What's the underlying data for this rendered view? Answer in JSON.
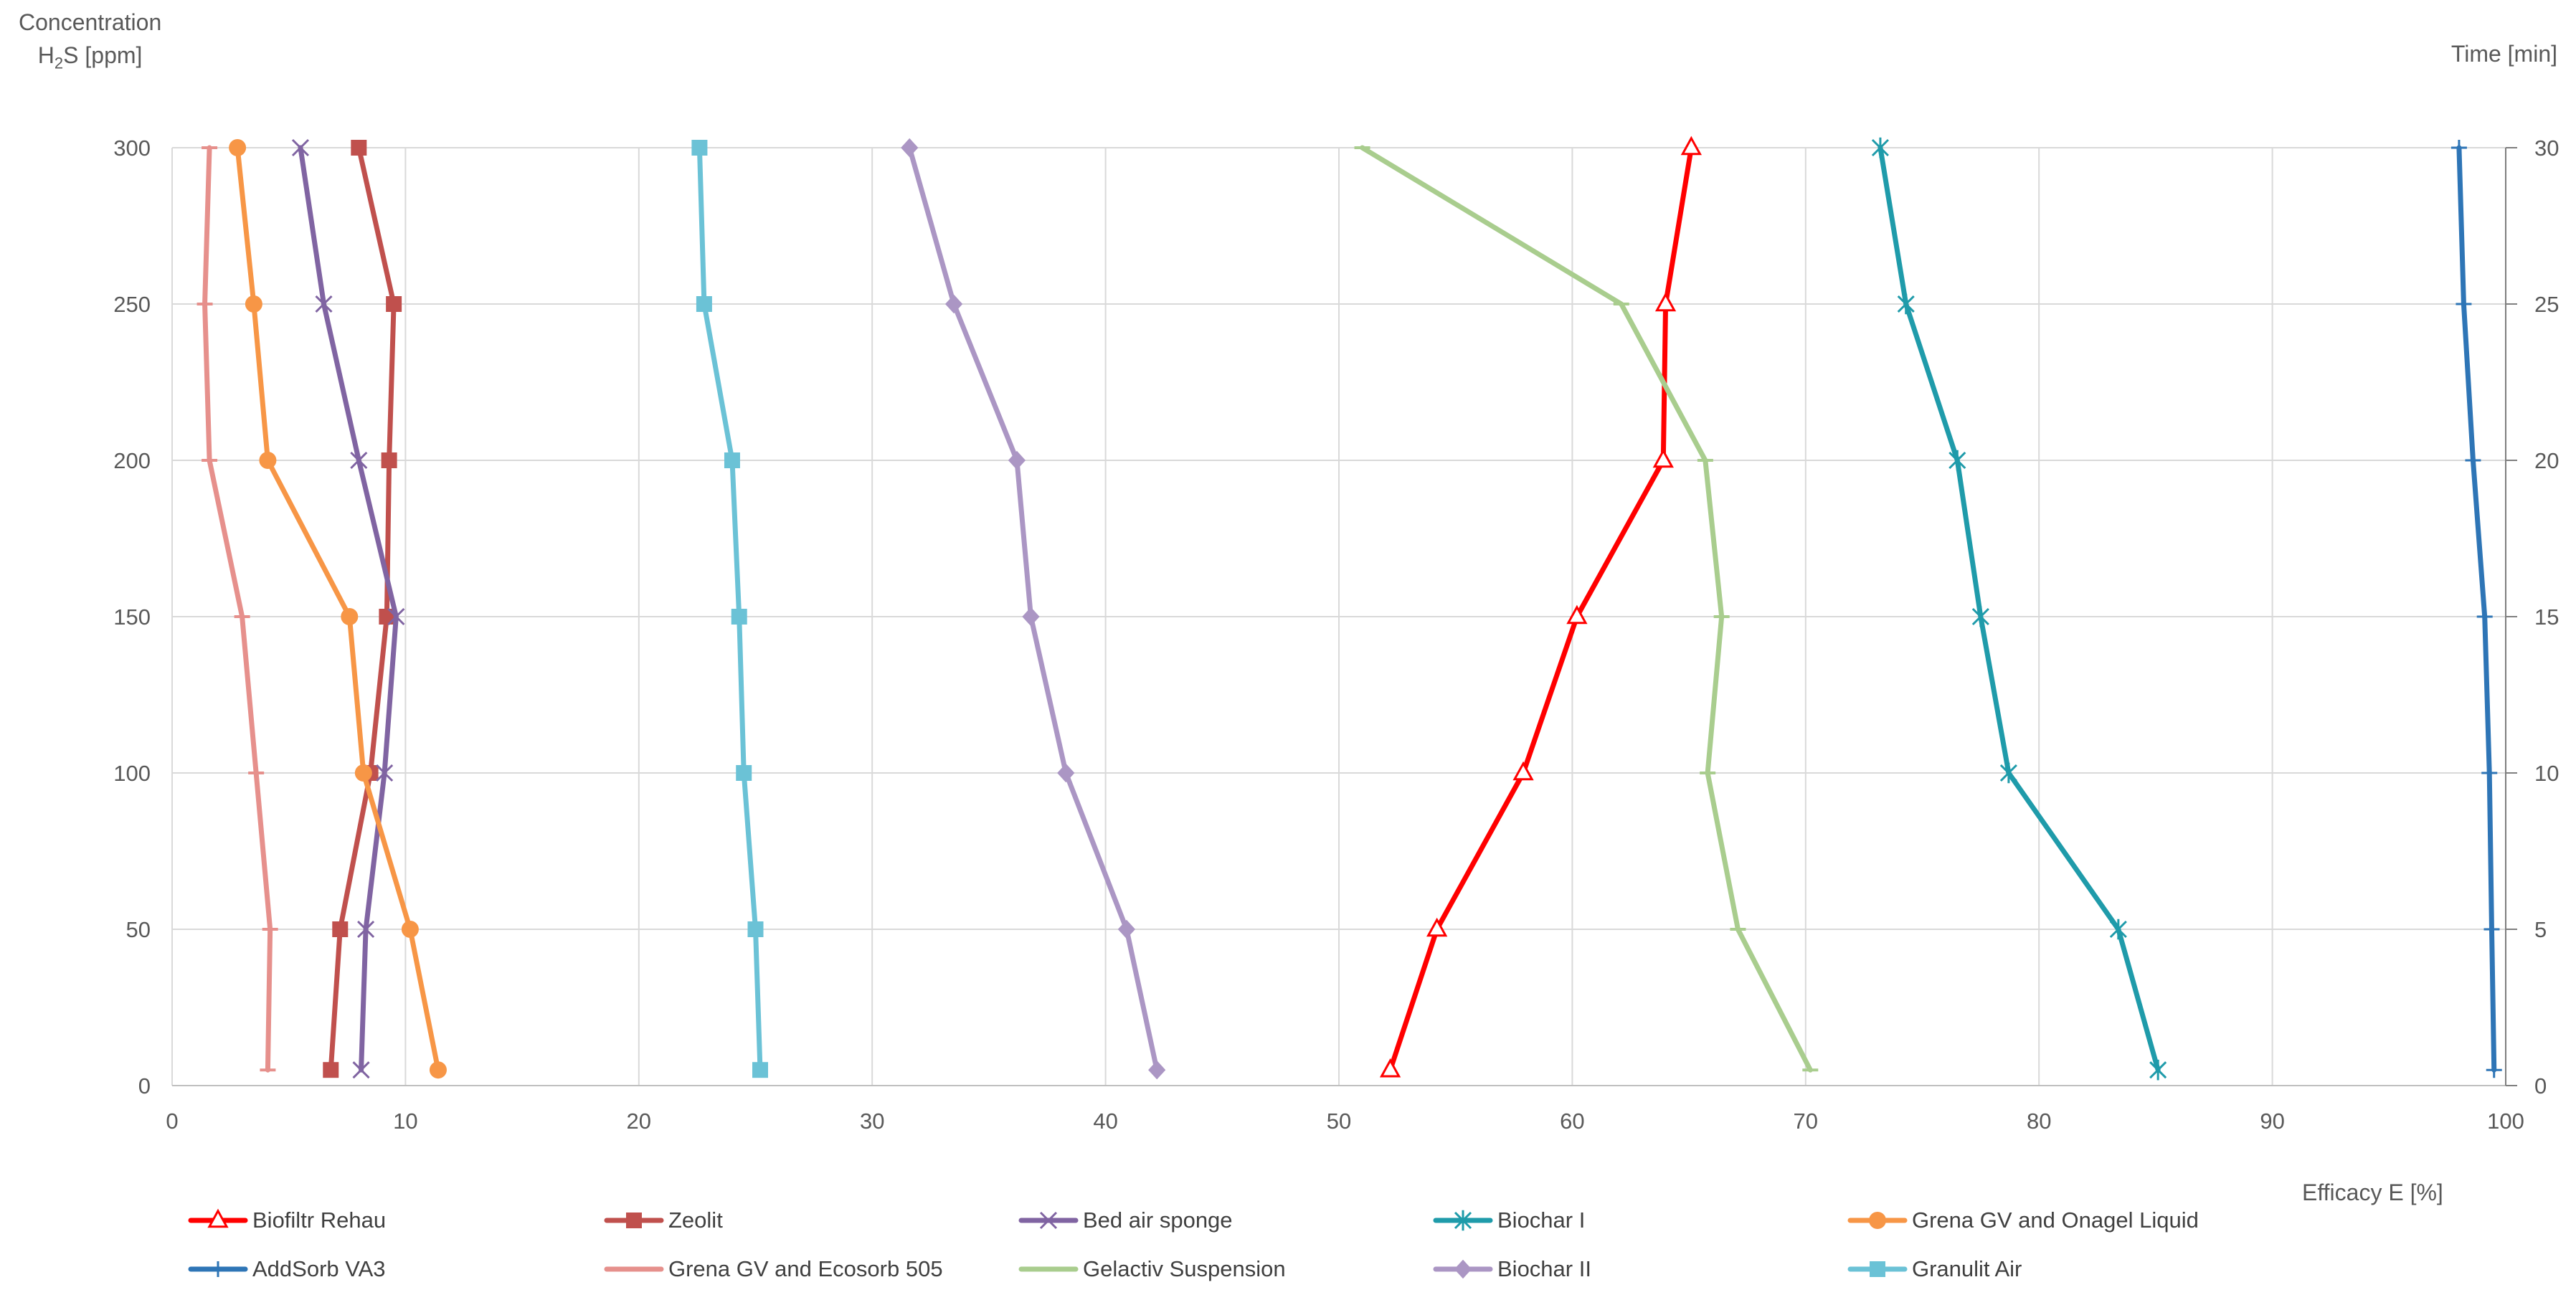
{
  "chart_data": {
    "type": "line",
    "y_title_line1": "Concentration",
    "y_title_prefix": "H",
    "y_title_sub": "2",
    "y_title_suffix": "S [ppm]",
    "right_axis_label": "Time [min]",
    "xlabel": "Efficacy E [%]",
    "xlim": [
      0,
      100
    ],
    "ylim": [
      0,
      300
    ],
    "y2lim": [
      0,
      30
    ],
    "x_ticks": [
      "0",
      "10",
      "20",
      "30",
      "40",
      "50",
      "60",
      "70",
      "80",
      "90",
      "100"
    ],
    "y_ticks": [
      "0",
      "50",
      "100",
      "150",
      "200",
      "250",
      "300"
    ],
    "y2_ticks": [
      "0",
      "5",
      "10",
      "15",
      "20",
      "25",
      "30"
    ],
    "grid": true,
    "legend_position": "bottom",
    "series": [
      {
        "name": "Biofiltr Rehau",
        "color": "#FF0000",
        "marker": "triangle-open",
        "x": [
          52.2,
          54.2,
          57.9,
          60.2,
          63.9,
          64.0,
          65.1
        ],
        "y": [
          5,
          50,
          100,
          150,
          200,
          250,
          300
        ]
      },
      {
        "name": "Zeolit",
        "color": "#C0504D",
        "marker": "square",
        "x": [
          6.8,
          7.2,
          8.5,
          9.2,
          9.3,
          9.5,
          8.0
        ],
        "y": [
          5,
          50,
          100,
          150,
          200,
          250,
          300
        ]
      },
      {
        "name": "Bed air sponge",
        "color": "#8064A2",
        "marker": "x",
        "x": [
          8.1,
          8.3,
          9.1,
          9.6,
          8.0,
          6.5,
          5.5
        ],
        "y": [
          5,
          50,
          100,
          150,
          200,
          250,
          300
        ]
      },
      {
        "name": "Biochar I",
        "color": "#1F9BAA",
        "marker": "asterisk",
        "x": [
          85.1,
          83.4,
          78.7,
          77.5,
          76.5,
          74.3,
          73.2
        ],
        "y": [
          5,
          50,
          100,
          150,
          200,
          250,
          300
        ]
      },
      {
        "name": "Grena GV and Onagel Liquid",
        "color": "#F79646",
        "marker": "circle",
        "x": [
          11.4,
          10.2,
          8.2,
          7.6,
          4.1,
          3.5,
          2.8
        ],
        "y": [
          5,
          50,
          100,
          150,
          200,
          250,
          300
        ]
      },
      {
        "name": "AddSorb VA3",
        "color": "#2E75B6",
        "marker": "plus",
        "x": [
          99.5,
          99.4,
          99.3,
          99.1,
          98.6,
          98.2,
          98.0
        ],
        "y": [
          5,
          50,
          100,
          150,
          200,
          250,
          300
        ]
      },
      {
        "name": "Grena GV and Ecosorb 505",
        "color": "#E6908C",
        "marker": "dash",
        "x": [
          4.1,
          4.2,
          3.6,
          3.0,
          1.6,
          1.4,
          1.6
        ],
        "y": [
          5,
          50,
          100,
          150,
          200,
          250,
          300
        ]
      },
      {
        "name": "Gelactiv Suspension",
        "color": "#A9CD8E",
        "marker": "dash",
        "x": [
          70.2,
          67.1,
          65.8,
          66.4,
          65.7,
          62.1,
          51.0
        ],
        "y": [
          5,
          50,
          100,
          150,
          200,
          250,
          300
        ]
      },
      {
        "name": "Biochar II",
        "color": "#AB96C4",
        "marker": "diamond",
        "x": [
          42.2,
          40.9,
          38.3,
          36.8,
          36.2,
          33.5,
          31.6
        ],
        "y": [
          5,
          50,
          100,
          150,
          200,
          250,
          300
        ]
      },
      {
        "name": "Granulit Air",
        "color": "#6BC2D6",
        "marker": "square",
        "x": [
          25.2,
          25.0,
          24.5,
          24.3,
          24.0,
          22.8,
          22.6
        ],
        "y": [
          5,
          50,
          100,
          150,
          200,
          250,
          300
        ]
      }
    ]
  }
}
